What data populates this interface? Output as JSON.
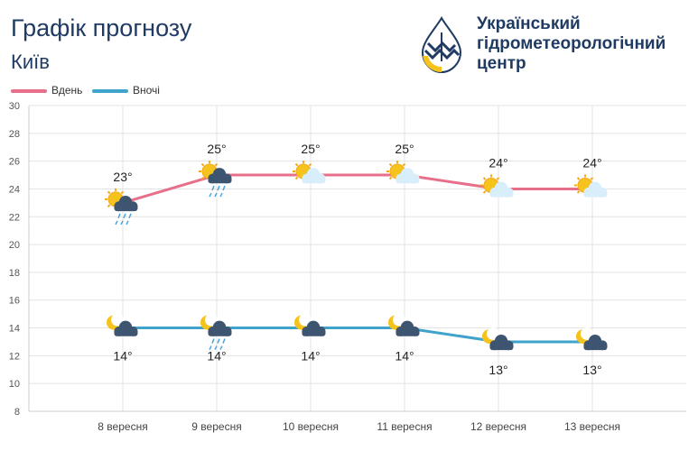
{
  "header": {
    "title": "Графік прогнозу",
    "city": "Київ"
  },
  "logo": {
    "line1": "Український",
    "line2": "гідрометеорологічний",
    "line3": "центр"
  },
  "colors": {
    "day": "#e86f8a",
    "night": "#3fa3cc",
    "title": "#1f3b63",
    "grid": "#e3e3e3",
    "sun": "#f6c21c",
    "cloud_light": "#d9eefb",
    "cloud_dark": "#3d5570",
    "rain": "#4aa3dd"
  },
  "chart_data": {
    "type": "line",
    "categories": [
      "8 вересня",
      "9 вересня",
      "10 вересня",
      "11 вересня",
      "12 вересня",
      "13 вересня"
    ],
    "ylim": [
      8,
      30
    ],
    "yticks": [
      8,
      10,
      12,
      14,
      16,
      18,
      20,
      22,
      24,
      26,
      28,
      30
    ],
    "grid": true,
    "legend_position": "top-left",
    "series": [
      {
        "name": "Вдень",
        "values": [
          23,
          25,
          25,
          25,
          24,
          24
        ],
        "labels": [
          "23°",
          "25°",
          "25°",
          "25°",
          "24°",
          "24°"
        ],
        "icons": [
          "sun-cloud-rain-icon",
          "sun-cloud-rain-icon",
          "sun-cloud-icon",
          "sun-cloud-icon",
          "sun-cloud-icon",
          "sun-cloud-icon"
        ]
      },
      {
        "name": "Вночі",
        "values": [
          14,
          14,
          14,
          14,
          13,
          13
        ],
        "labels": [
          "14°",
          "14°",
          "14°",
          "14°",
          "13°",
          "13°"
        ],
        "icons": [
          "moon-cloud-icon",
          "moon-cloud-rain-icon",
          "moon-cloud-icon",
          "moon-cloud-icon",
          "moon-cloud-icon",
          "moon-cloud-icon"
        ]
      }
    ]
  }
}
